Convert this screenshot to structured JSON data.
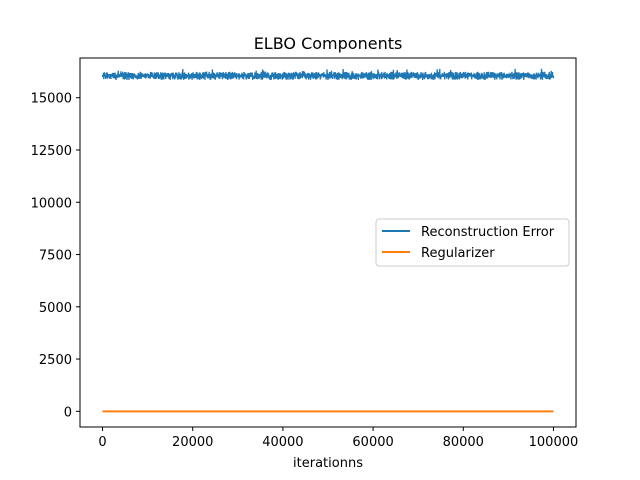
{
  "chart_data": {
    "type": "line",
    "title": "ELBO Components",
    "xlabel": "iterationns",
    "ylabel": "",
    "xlim": [
      -5000,
      105000
    ],
    "ylim": [
      -750,
      16900
    ],
    "xticks": [
      0,
      20000,
      40000,
      60000,
      80000,
      100000
    ],
    "xtick_labels": [
      "0",
      "20000",
      "40000",
      "60000",
      "80000",
      "100000"
    ],
    "yticks": [
      0,
      2500,
      5000,
      7500,
      10000,
      12500,
      15000
    ],
    "ytick_labels": [
      "0",
      "2500",
      "5000",
      "7500",
      "10000",
      "12500",
      "15000"
    ],
    "grid": false,
    "legend_position": "center-right",
    "series": [
      {
        "name": "Reconstruction Error",
        "color": "#1f77b4",
        "x_range": [
          0,
          100000
        ],
        "mean": 16050,
        "band": [
          15850,
          16400
        ]
      },
      {
        "name": "Regularizer",
        "color": "#ff7f0e",
        "x_range": [
          0,
          100000
        ],
        "values": [
          0,
          0
        ]
      }
    ]
  }
}
